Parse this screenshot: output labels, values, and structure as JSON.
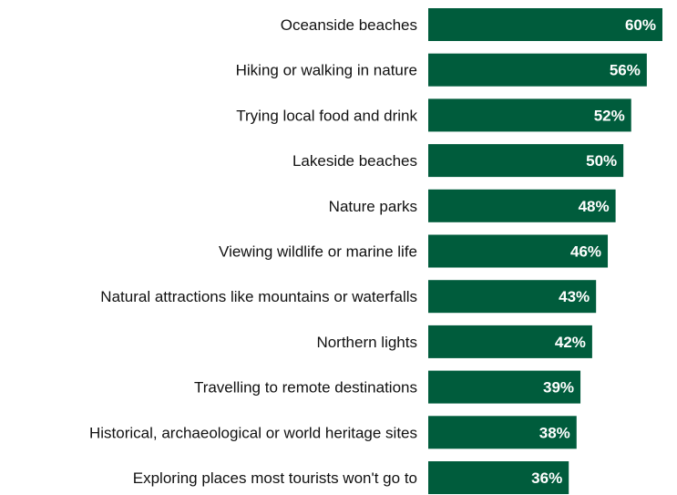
{
  "chart_data": {
    "type": "bar",
    "orientation": "horizontal",
    "categories": [
      "Oceanside beaches",
      "Hiking or walking in nature",
      "Trying local food and drink",
      "Lakeside beaches",
      "Nature parks",
      "Viewing wildlife or marine life",
      "Natural attractions like mountains or waterfalls",
      "Northern lights",
      "Travelling to remote destinations",
      "Historical, archaeological or world heritage sites",
      "Exploring places most tourists won't go to"
    ],
    "values": [
      60,
      56,
      52,
      50,
      48,
      46,
      43,
      42,
      39,
      38,
      36
    ],
    "value_labels": [
      "60%",
      "56%",
      "52%",
      "50%",
      "48%",
      "46%",
      "43%",
      "42%",
      "39%",
      "38%",
      "36%"
    ],
    "unit": "%",
    "xlim": [
      0,
      60
    ],
    "grid": false,
    "bar_color": "#005c3c",
    "label_color": "#ffffff"
  }
}
